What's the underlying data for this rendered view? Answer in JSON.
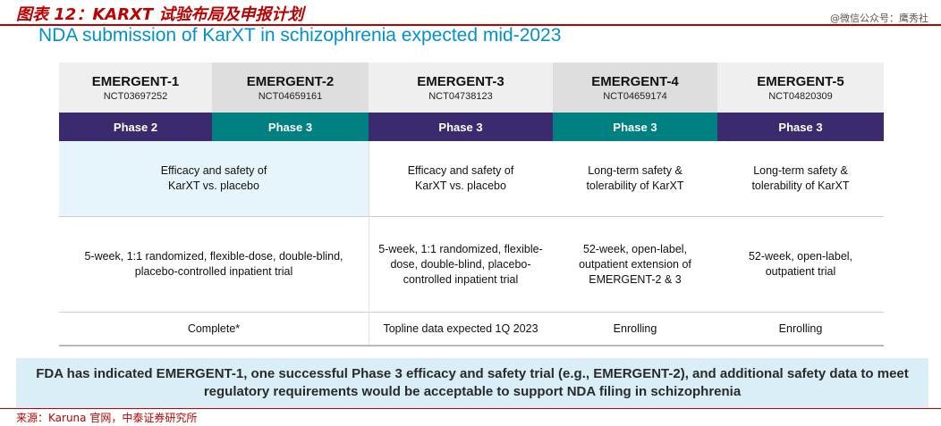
{
  "figure": {
    "title": "图表 12：KARXT 试验布局及申报计划",
    "watermark": "@微信公众号：鹰秀社",
    "subtitle": "NDA submission of KarXT in schizophrenia expected mid-2023"
  },
  "trials": [
    {
      "name": "EMERGENT-1",
      "nct": "NCT03697252",
      "phase": "Phase 2"
    },
    {
      "name": "EMERGENT-2",
      "nct": "NCT04659161",
      "phase": "Phase 3"
    },
    {
      "name": "EMERGENT-3",
      "nct": "NCT04738123",
      "phase": "Phase 3"
    },
    {
      "name": "EMERGENT-4",
      "nct": "NCT04659174",
      "phase": "Phase 3"
    },
    {
      "name": "EMERGENT-5",
      "nct": "NCT04820309",
      "phase": "Phase 3"
    }
  ],
  "rows": {
    "objective": {
      "emergent_1_2": "Efficacy and safety of KarXT vs. placebo",
      "emergent_3": "Efficacy and safety of KarXT vs. placebo",
      "emergent_4": "Long-term safety & tolerability of KarXT",
      "emergent_5": "Long-term safety & tolerability of KarXT"
    },
    "design": {
      "emergent_1_2": "5-week, 1:1 randomized, flexible-dose, double-blind, placebo-controlled inpatient trial",
      "emergent_3": "5-week, 1:1 randomized, flexible-dose, double-blind, placebo-controlled inpatient trial",
      "emergent_4": "52-week, open-label, outpatient extension of EMERGENT-2 & 3",
      "emergent_5": "52-week, open-label, outpatient trial"
    },
    "status": {
      "emergent_1_2": "Complete*",
      "emergent_3": "Topline data expected 1Q 2023",
      "emergent_4": "Enrolling",
      "emergent_5": "Enrolling"
    }
  },
  "note": "FDA has indicated EMERGENT-1, one successful Phase 3 efficacy and safety trial (e.g., EMERGENT-2), and additional safety data to meet regulatory requirements would be acceptable to support NDA filing in schizophrenia",
  "source": "来源：Karuna 官网，中泰证券研究所",
  "colors": {
    "title_red": "#c00000",
    "subtitle_blue": "#0092c8",
    "phase_purple": "#3b2a6e",
    "phase_teal": "#008080",
    "highlight": "#e6f5fb",
    "note_bg": "#d9eef6"
  }
}
